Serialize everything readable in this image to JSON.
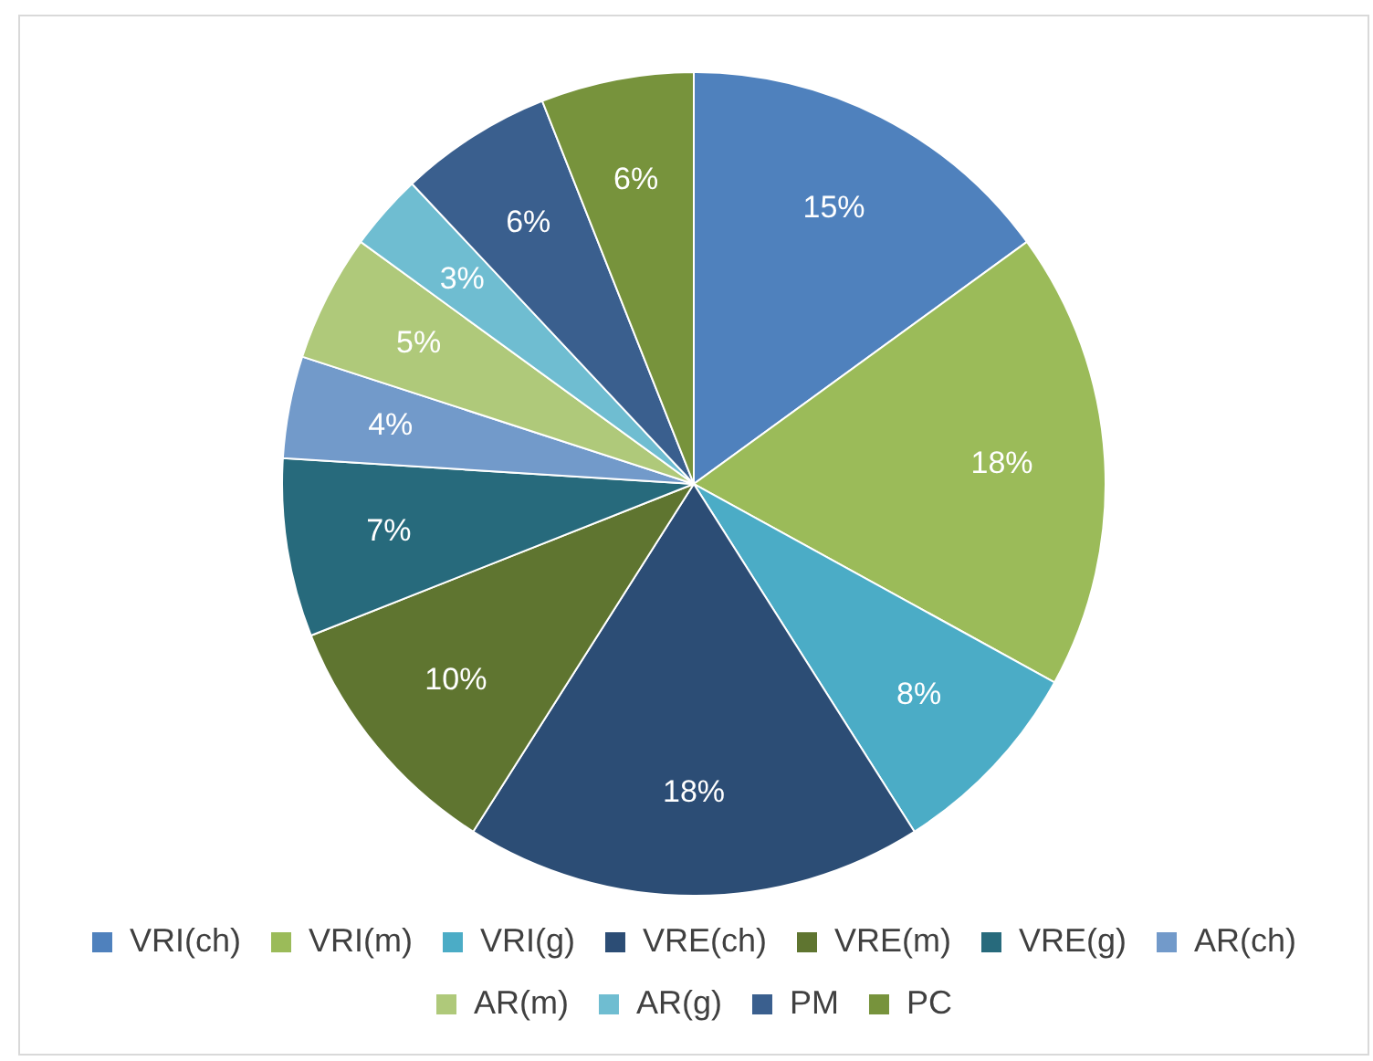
{
  "chart_data": {
    "type": "pie",
    "categories": [
      "VRI(ch)",
      "VRI(m)",
      "VRI(g)",
      "VRE(ch)",
      "VRE(m)",
      "VRE(g)",
      "AR(ch)",
      "AR(m)",
      "AR(g)",
      "PM",
      "PC"
    ],
    "values": [
      15,
      18,
      8,
      18,
      10,
      7,
      4,
      5,
      3,
      6,
      6
    ],
    "value_labels": [
      "15%",
      "18%",
      "8%",
      "18%",
      "10%",
      "7%",
      "4%",
      "5%",
      "3%",
      "6%",
      "6%"
    ],
    "colors": [
      "#4f81bd",
      "#9bbb59",
      "#4bacc6",
      "#2c4d75",
      "#5f7530",
      "#276a7c",
      "#729aca",
      "#afc97a",
      "#6fbdd1",
      "#3a5f8e",
      "#77933c"
    ],
    "legend": "bottom"
  }
}
